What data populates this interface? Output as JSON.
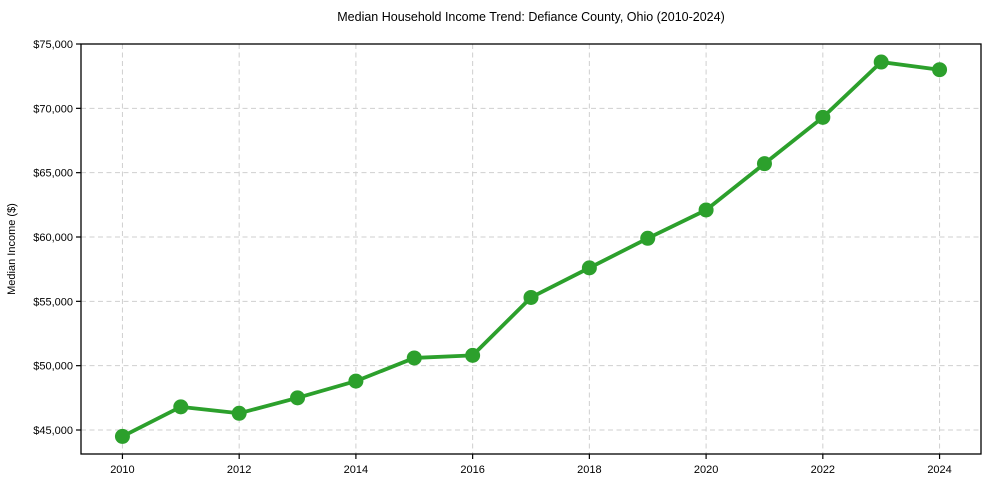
{
  "chart_data": {
    "type": "line",
    "title": "Median Household Income Trend: Defiance County, Ohio (2010-2024)",
    "xlabel": "",
    "ylabel": "Median Income ($)",
    "x": [
      2010,
      2011,
      2012,
      2013,
      2014,
      2015,
      2016,
      2017,
      2018,
      2019,
      2020,
      2021,
      2022,
      2023,
      2024
    ],
    "values": [
      44500,
      46800,
      46300,
      47500,
      48800,
      50600,
      50800,
      55300,
      57600,
      59900,
      62100,
      65700,
      69300,
      73600,
      73000
    ],
    "series": [
      {
        "name": "Median household income",
        "values": [
          44500,
          46800,
          46300,
          47500,
          48800,
          50600,
          50800,
          55300,
          57600,
          59900,
          62100,
          65700,
          69300,
          73600,
          73000
        ]
      }
    ],
    "x_ticks": [
      2010,
      2012,
      2014,
      2016,
      2018,
      2020,
      2022,
      2024
    ],
    "x_tick_labels": [
      "2010",
      "2012",
      "2014",
      "2016",
      "2018",
      "2020",
      "2022",
      "2024"
    ],
    "y_ticks": [
      45000,
      50000,
      55000,
      60000,
      65000,
      70000,
      75000
    ],
    "y_tick_labels": [
      "$45,000",
      "$50,000",
      "$55,000",
      "$60,000",
      "$65,000",
      "$70,000",
      "$75,000"
    ],
    "xlim": [
      2009.29,
      2024.71
    ],
    "ylim": [
      43135,
      75000
    ],
    "grid": true,
    "grid_style": "dashed",
    "legend": false,
    "marker": "circle",
    "line_color": "#2ca02c",
    "grid_color": "#cfcfcf",
    "spine_color": "#000000",
    "background": "#ffffff"
  }
}
